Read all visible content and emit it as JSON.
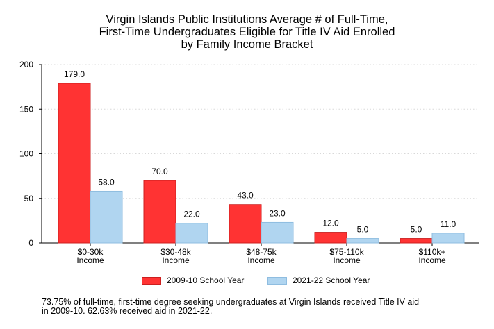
{
  "chart_data": {
    "type": "bar",
    "title_lines": [
      "Virgin Islands Public Institutions Average # of Full-Time,",
      "First-Time Undergraduates Eligible for Title IV Aid Enrolled",
      "by Family Income Bracket"
    ],
    "categories": [
      [
        "$0-30k",
        "Income"
      ],
      [
        "$30-48k",
        "Income"
      ],
      [
        "$48-75k",
        "Income"
      ],
      [
        "$75-110k",
        "Income"
      ],
      [
        "$110k+",
        "Income"
      ]
    ],
    "series": [
      {
        "name": "2009-10 School Year",
        "values": [
          179.0,
          70.0,
          43.0,
          12.0,
          5.0
        ],
        "labels": [
          "179.0",
          "70.0",
          "43.0",
          "12.0",
          "5.0"
        ],
        "color": "#ff3333",
        "stroke": "#cc1f1f"
      },
      {
        "name": "2021-22 School Year",
        "values": [
          58.0,
          22.0,
          23.0,
          5.0,
          11.0
        ],
        "labels": [
          "58.0",
          "22.0",
          "23.0",
          "5.0",
          "11.0"
        ],
        "color": "#b0d5f0",
        "stroke": "#8fbde0"
      }
    ],
    "ylim": [
      0,
      200
    ],
    "yticks": [
      0,
      50,
      100,
      150,
      200
    ],
    "grid": true,
    "legend_position": "bottom"
  },
  "note": {
    "line1": "73.75% of full-time, first-time degree seeking undergraduates at Virgin Islands received Title IV aid",
    "line2": "in 2009-10. 62.63% received aid in 2021-22."
  }
}
